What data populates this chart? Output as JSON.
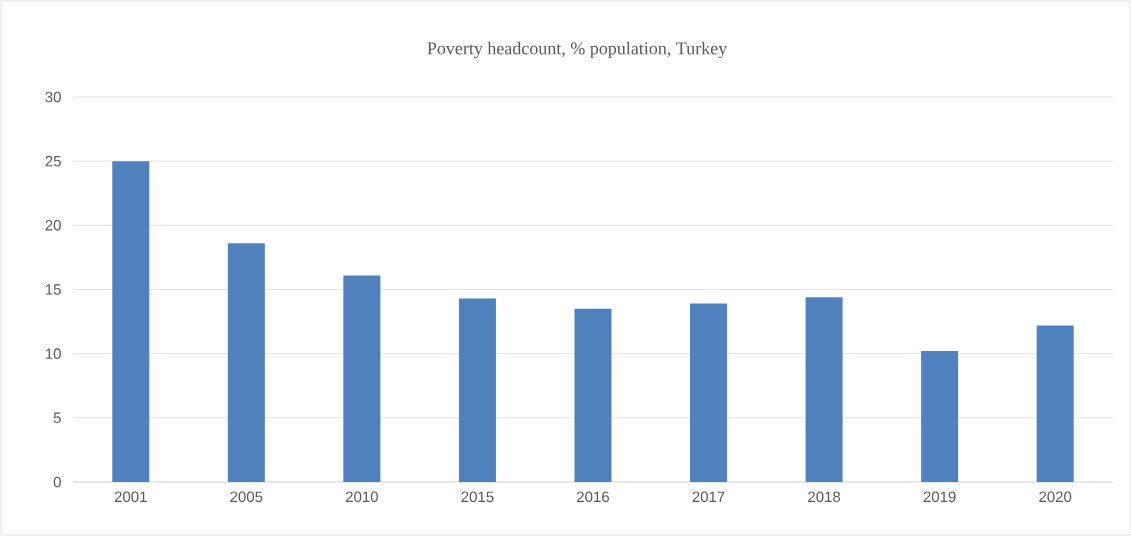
{
  "chart_data": {
    "type": "bar",
    "title": "Poverty headcount, % population, Turkey",
    "categories": [
      "2001",
      "2005",
      "2010",
      "2015",
      "2016",
      "2017",
      "2018",
      "2019",
      "2020"
    ],
    "values": [
      25.0,
      18.6,
      16.1,
      14.3,
      13.5,
      13.9,
      14.4,
      10.2,
      12.2
    ],
    "color": "#4f81bd",
    "ylim": [
      0,
      30
    ],
    "yticks": [
      0,
      5,
      10,
      15,
      20,
      25,
      30
    ],
    "grid": "y"
  }
}
